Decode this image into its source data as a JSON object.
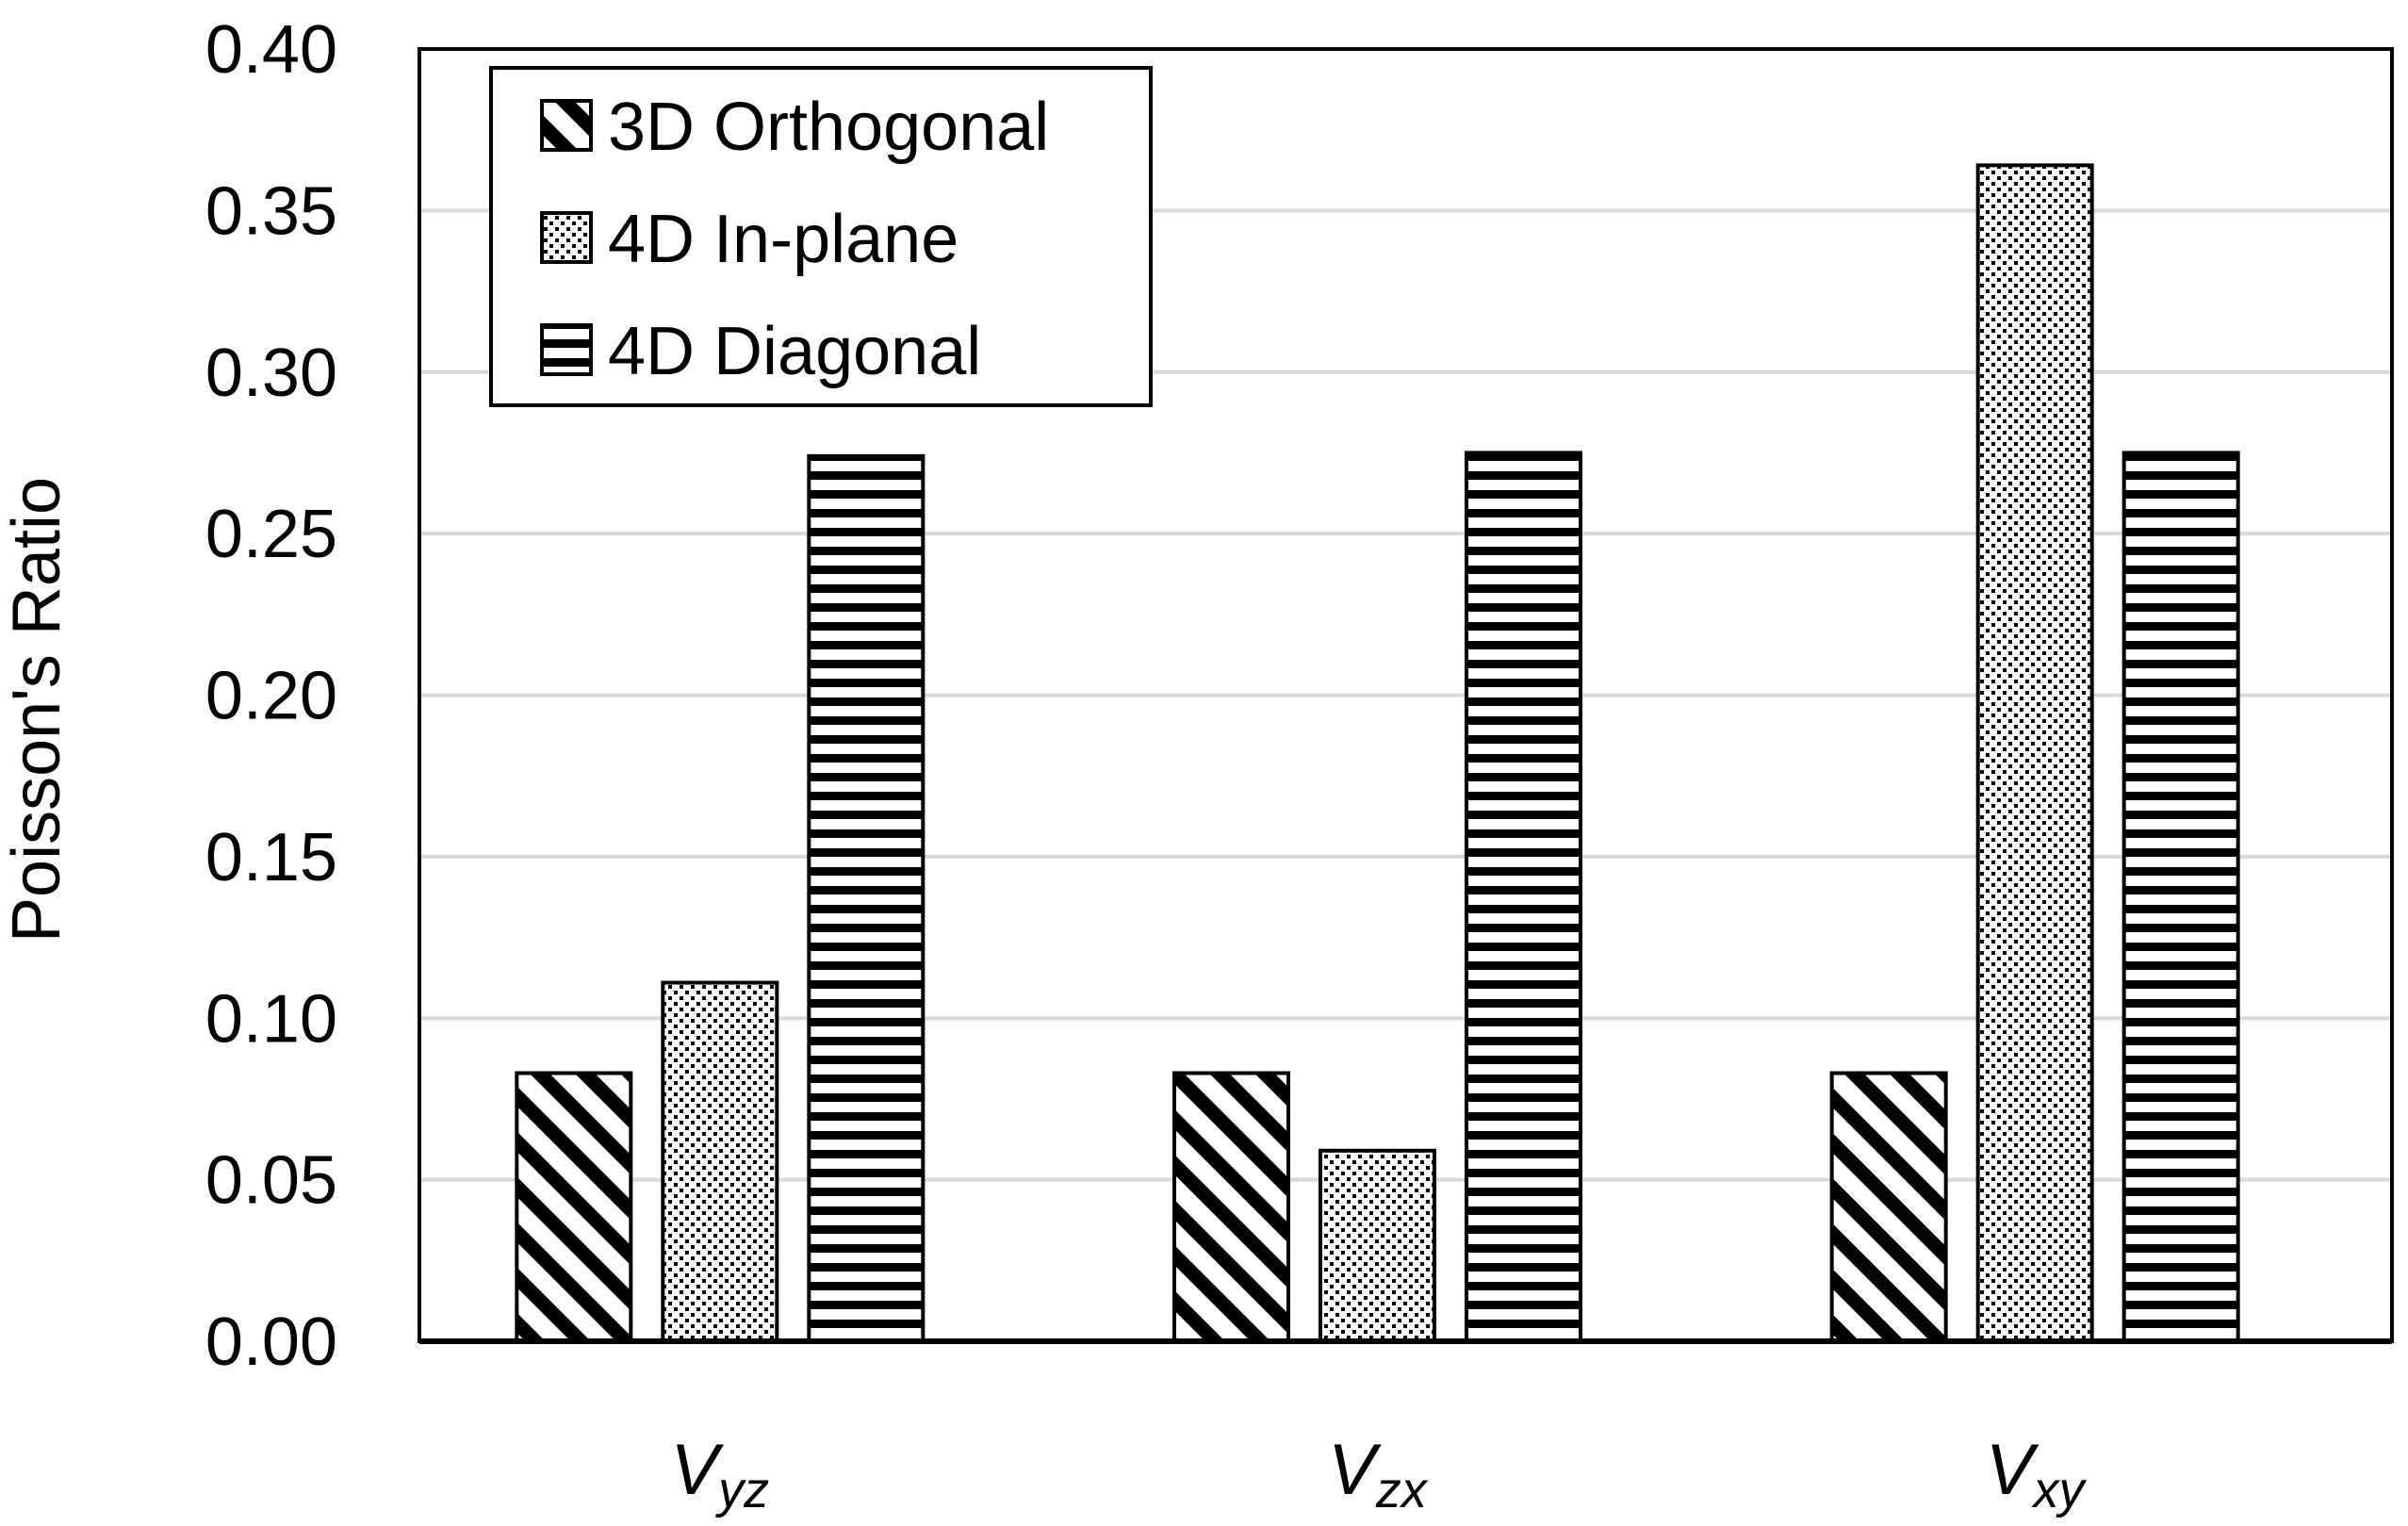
{
  "chart_data": {
    "type": "bar",
    "ylabel": "Poisson's Ratio",
    "xlabel": "",
    "ylim": [
      0,
      0.4
    ],
    "yticks": [
      "0.00",
      "0.05",
      "0.10",
      "0.15",
      "0.20",
      "0.25",
      "0.30",
      "0.35",
      "0.40"
    ],
    "grid": true,
    "legend_position": "top-left",
    "categories": [
      {
        "base": "V",
        "sub": "yz"
      },
      {
        "base": "V",
        "sub": "zx"
      },
      {
        "base": "V",
        "sub": "xy"
      }
    ],
    "series": [
      {
        "name": "3D Orthogonal",
        "pattern": "diagonal-hatch",
        "values": [
          0.083,
          0.083,
          0.083
        ]
      },
      {
        "name": "4D In-plane",
        "pattern": "dots",
        "values": [
          0.111,
          0.059,
          0.364
        ]
      },
      {
        "name": "4D Diagonal",
        "pattern": "horizontal-lines",
        "values": [
          0.274,
          0.275,
          0.275
        ]
      }
    ],
    "colors": {
      "stroke": "#000000",
      "grid": "#d9d9d9",
      "background": "#ffffff"
    }
  }
}
